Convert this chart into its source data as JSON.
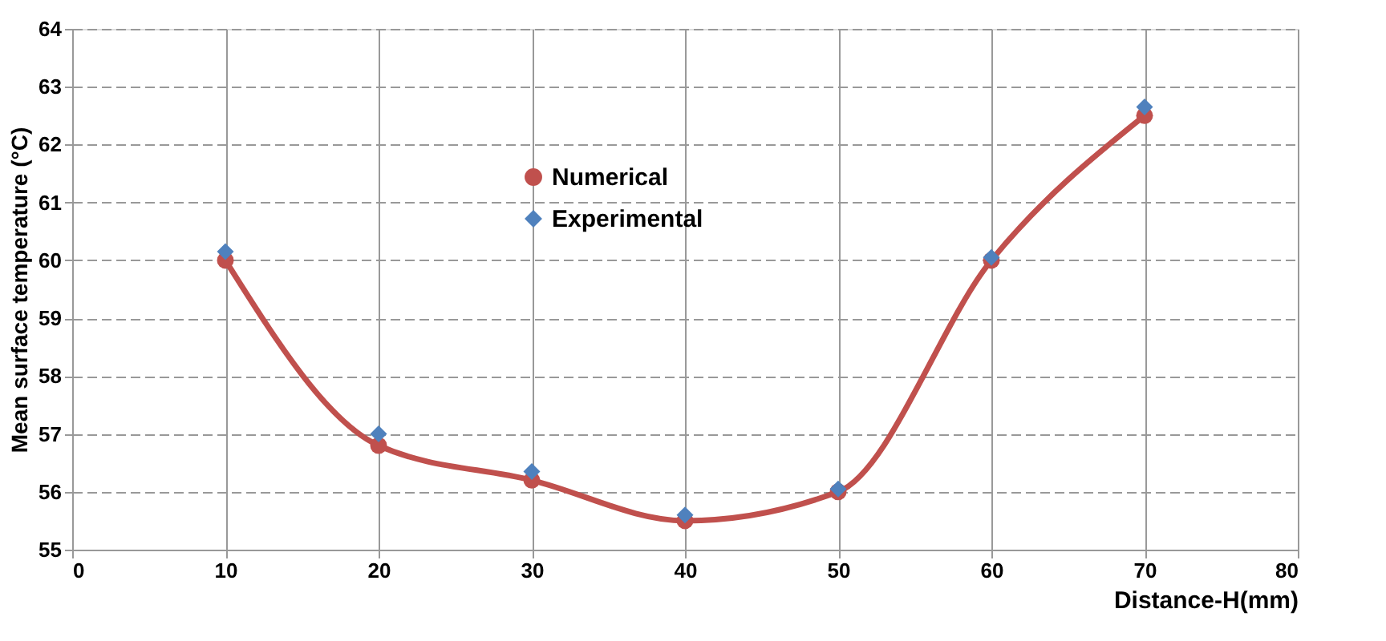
{
  "chart_data": {
    "type": "line",
    "xlabel": "Distance-H(mm)",
    "ylabel": "Mean surface temperature (°C)",
    "x": [
      10,
      20,
      30,
      40,
      50,
      60,
      70
    ],
    "series": [
      {
        "name": "Numerical",
        "marker": "circle",
        "color": "#c0504d",
        "values": [
          60.0,
          56.8,
          56.2,
          55.5,
          56.0,
          60.0,
          62.5
        ]
      },
      {
        "name": "Experimental",
        "type": "scatter",
        "marker": "diamond",
        "color": "#4f81bd",
        "values": [
          60.15,
          57.0,
          56.35,
          55.6,
          56.05,
          60.05,
          62.65
        ]
      }
    ],
    "xlim": [
      0,
      80
    ],
    "xticks": [
      0,
      10,
      20,
      30,
      40,
      50,
      60,
      70,
      80
    ],
    "ylim": [
      55,
      64
    ],
    "yticks": [
      55,
      56,
      57,
      58,
      59,
      60,
      61,
      62,
      63,
      64
    ],
    "grid": true,
    "legend": "top"
  }
}
